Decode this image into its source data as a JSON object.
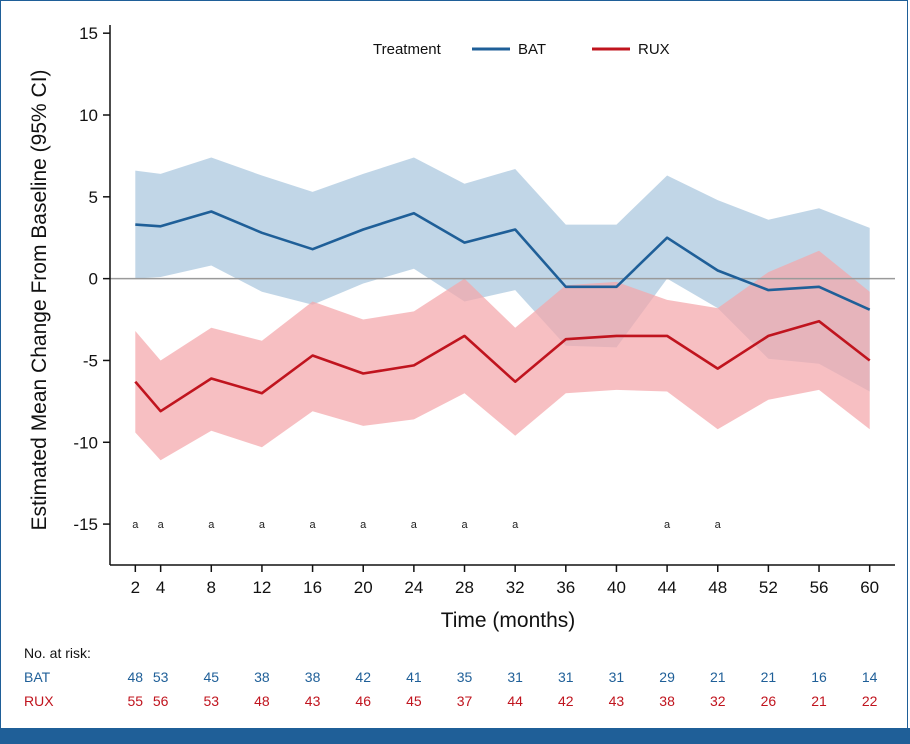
{
  "chart_data": {
    "type": "line",
    "ylabel": "Estimated Mean Change From Baseline (95% CI)",
    "xlabel": "Time (months)",
    "x": [
      2,
      4,
      8,
      12,
      16,
      20,
      24,
      28,
      32,
      36,
      40,
      44,
      48,
      52,
      56,
      60
    ],
    "xlim": [
      0,
      62
    ],
    "ylim": [
      -17.5,
      15.5
    ],
    "yticks": [
      15,
      10,
      5,
      0,
      -5,
      -10,
      -15
    ],
    "reference_line_y": 0,
    "legend": {
      "title": "Treatment",
      "placement": "top-center"
    },
    "series": [
      {
        "name": "BAT",
        "color": "#1f5f98",
        "band_color": "#a9c6de",
        "values": [
          3.3,
          3.2,
          4.1,
          2.8,
          1.8,
          3.0,
          4.0,
          2.2,
          3.0,
          -0.5,
          -0.5,
          2.5,
          0.5,
          -0.7,
          -0.5,
          -1.9
        ],
        "lower": [
          0.0,
          0.1,
          0.8,
          -0.8,
          -1.6,
          -0.3,
          0.6,
          -1.4,
          -0.7,
          -4.1,
          -4.2,
          0.0,
          -1.8,
          -4.9,
          -5.2,
          -6.9
        ],
        "upper": [
          6.6,
          6.4,
          7.4,
          6.3,
          5.3,
          6.4,
          7.4,
          5.8,
          6.7,
          3.3,
          3.3,
          6.3,
          4.8,
          3.6,
          4.3,
          3.1
        ]
      },
      {
        "name": "RUX",
        "color": "#c0141e",
        "band_color": "#f4a6ab",
        "values": [
          -6.3,
          -8.1,
          -6.1,
          -7.0,
          -4.7,
          -5.8,
          -5.3,
          -3.5,
          -6.3,
          -3.7,
          -3.5,
          -3.5,
          -5.5,
          -3.5,
          -2.6,
          -5.0
        ],
        "lower": [
          -9.4,
          -11.1,
          -9.3,
          -10.3,
          -8.1,
          -9.0,
          -8.6,
          -7.0,
          -9.6,
          -7.0,
          -6.8,
          -6.9,
          -9.2,
          -7.4,
          -6.8,
          -9.2
        ],
        "upper": [
          -3.2,
          -5.0,
          -3.0,
          -3.8,
          -1.4,
          -2.5,
          -2.0,
          0.0,
          -3.0,
          -0.4,
          -0.2,
          -1.3,
          -1.8,
          0.4,
          1.7,
          -0.8
        ]
      }
    ],
    "annotations": {
      "text": "a",
      "y": -15,
      "x": [
        2,
        4,
        8,
        12,
        16,
        20,
        24,
        28,
        32,
        44,
        48
      ]
    }
  },
  "risk_table": {
    "title": "No. at risk:",
    "rows": [
      {
        "label": "BAT",
        "values": [
          "48",
          "53",
          "45",
          "38",
          "38",
          "42",
          "41",
          "35",
          "31",
          "31",
          "31",
          "29",
          "21",
          "21",
          "16",
          "14"
        ]
      },
      {
        "label": "RUX",
        "values": [
          "55",
          "56",
          "53",
          "48",
          "43",
          "46",
          "45",
          "37",
          "44",
          "42",
          "43",
          "38",
          "32",
          "26",
          "21",
          "22"
        ]
      }
    ]
  }
}
